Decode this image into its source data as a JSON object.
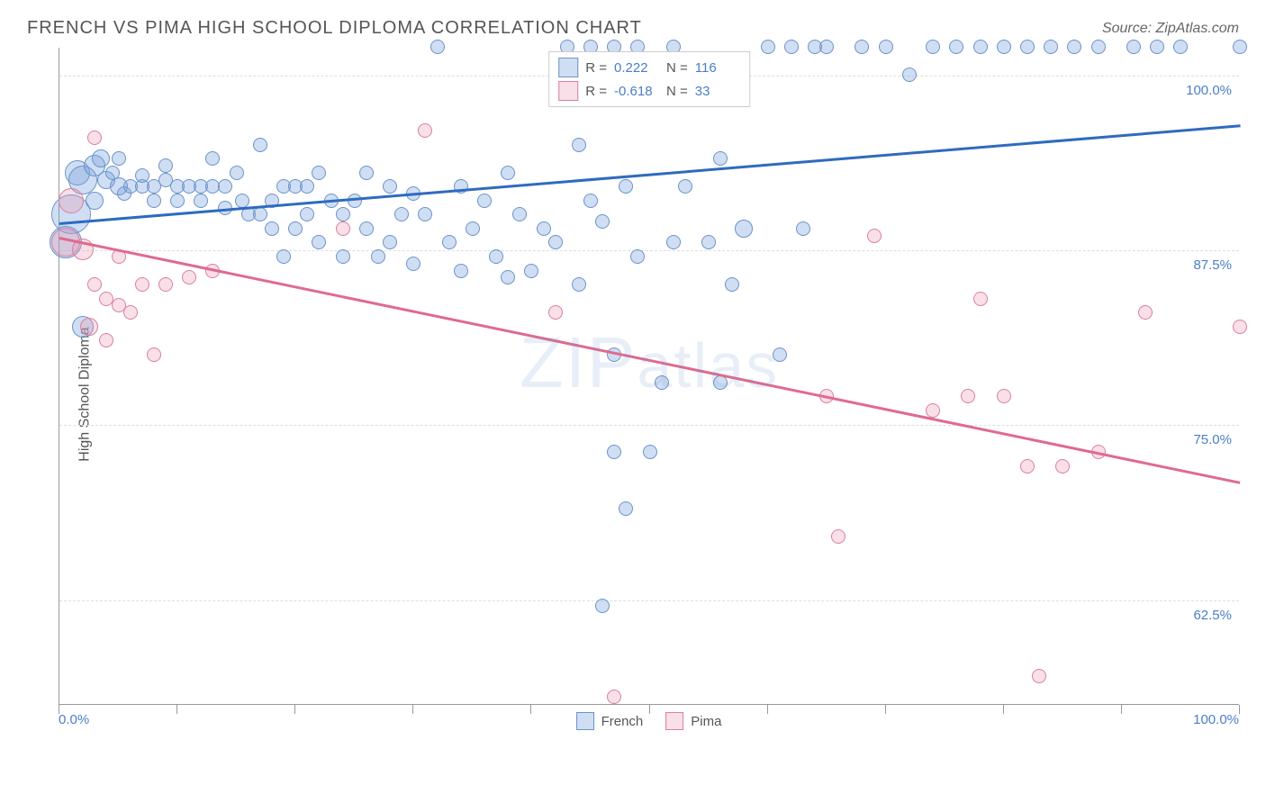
{
  "title": "FRENCH VS PIMA HIGH SCHOOL DIPLOMA CORRELATION CHART",
  "source_label": "Source: ZipAtlas.com",
  "ylabel": "High School Diploma",
  "watermark": {
    "bold": "ZIP",
    "rest": "atlas"
  },
  "chart": {
    "type": "scatter",
    "xlim": [
      0,
      100
    ],
    "ylim": [
      55,
      102
    ],
    "background_color": "#ffffff",
    "grid_color": "#dddddd",
    "axis_color": "#999999",
    "tick_label_color": "#4a7ec9",
    "tick_fontsize": 15,
    "yticks": [
      62.5,
      75.0,
      87.5,
      100.0
    ],
    "ytick_labels": [
      "62.5%",
      "75.0%",
      "87.5%",
      "100.0%"
    ],
    "xtick_positions": [
      0,
      10,
      20,
      30,
      40,
      50,
      60,
      70,
      80,
      90,
      100
    ],
    "xtick_labels_shown": {
      "0": "0.0%",
      "100": "100.0%"
    }
  },
  "series": [
    {
      "name": "French",
      "color_fill": "rgba(120,160,220,0.35)",
      "color_stroke": "#6a93c9",
      "trend_color": "#2e6bc0",
      "R": "0.222",
      "N": "116",
      "trend": {
        "x1": 0,
        "y1": 89.5,
        "x2": 100,
        "y2": 96.5
      },
      "points": [
        {
          "x": 0.5,
          "y": 88,
          "r": 18
        },
        {
          "x": 1,
          "y": 90,
          "r": 22
        },
        {
          "x": 1.5,
          "y": 93,
          "r": 14
        },
        {
          "x": 2,
          "y": 82,
          "r": 12
        },
        {
          "x": 2,
          "y": 92.5,
          "r": 16
        },
        {
          "x": 3,
          "y": 93.5,
          "r": 12
        },
        {
          "x": 3,
          "y": 91,
          "r": 10
        },
        {
          "x": 3.5,
          "y": 94,
          "r": 10
        },
        {
          "x": 4,
          "y": 92.5,
          "r": 10
        },
        {
          "x": 4.5,
          "y": 93,
          "r": 8
        },
        {
          "x": 5,
          "y": 92,
          "r": 10
        },
        {
          "x": 5,
          "y": 94,
          "r": 8
        },
        {
          "x": 5.5,
          "y": 91.5,
          "r": 8
        },
        {
          "x": 6,
          "y": 92,
          "r": 8
        },
        {
          "x": 7,
          "y": 92,
          "r": 8
        },
        {
          "x": 7,
          "y": 92.8,
          "r": 8
        },
        {
          "x": 8,
          "y": 92,
          "r": 8
        },
        {
          "x": 8,
          "y": 91,
          "r": 8
        },
        {
          "x": 9,
          "y": 92.5,
          "r": 8
        },
        {
          "x": 9,
          "y": 93.5,
          "r": 8
        },
        {
          "x": 10,
          "y": 92,
          "r": 8
        },
        {
          "x": 10,
          "y": 91,
          "r": 8
        },
        {
          "x": 11,
          "y": 92,
          "r": 8
        },
        {
          "x": 12,
          "y": 92,
          "r": 8
        },
        {
          "x": 12,
          "y": 91,
          "r": 8
        },
        {
          "x": 13,
          "y": 92,
          "r": 8
        },
        {
          "x": 13,
          "y": 94,
          "r": 8
        },
        {
          "x": 14,
          "y": 92,
          "r": 8
        },
        {
          "x": 14,
          "y": 90.5,
          "r": 8
        },
        {
          "x": 15,
          "y": 93,
          "r": 8
        },
        {
          "x": 15.5,
          "y": 91,
          "r": 8
        },
        {
          "x": 16,
          "y": 90,
          "r": 8
        },
        {
          "x": 17,
          "y": 95,
          "r": 8
        },
        {
          "x": 17,
          "y": 90,
          "r": 8
        },
        {
          "x": 18,
          "y": 91,
          "r": 8
        },
        {
          "x": 18,
          "y": 89,
          "r": 8
        },
        {
          "x": 19,
          "y": 92,
          "r": 8
        },
        {
          "x": 19,
          "y": 87,
          "r": 8
        },
        {
          "x": 20,
          "y": 92,
          "r": 8
        },
        {
          "x": 20,
          "y": 89,
          "r": 8
        },
        {
          "x": 21,
          "y": 92,
          "r": 8
        },
        {
          "x": 21,
          "y": 90,
          "r": 8
        },
        {
          "x": 22,
          "y": 93,
          "r": 8
        },
        {
          "x": 22,
          "y": 88,
          "r": 8
        },
        {
          "x": 23,
          "y": 91,
          "r": 8
        },
        {
          "x": 24,
          "y": 90,
          "r": 8
        },
        {
          "x": 24,
          "y": 87,
          "r": 8
        },
        {
          "x": 25,
          "y": 91,
          "r": 8
        },
        {
          "x": 26,
          "y": 89,
          "r": 8
        },
        {
          "x": 26,
          "y": 93,
          "r": 8
        },
        {
          "x": 27,
          "y": 87,
          "r": 8
        },
        {
          "x": 28,
          "y": 92,
          "r": 8
        },
        {
          "x": 28,
          "y": 88,
          "r": 8
        },
        {
          "x": 29,
          "y": 90,
          "r": 8
        },
        {
          "x": 30,
          "y": 91.5,
          "r": 8
        },
        {
          "x": 30,
          "y": 86.5,
          "r": 8
        },
        {
          "x": 31,
          "y": 90,
          "r": 8
        },
        {
          "x": 32,
          "y": 102,
          "r": 8
        },
        {
          "x": 33,
          "y": 88,
          "r": 8
        },
        {
          "x": 34,
          "y": 86,
          "r": 8
        },
        {
          "x": 34,
          "y": 92,
          "r": 8
        },
        {
          "x": 35,
          "y": 89,
          "r": 8
        },
        {
          "x": 36,
          "y": 91,
          "r": 8
        },
        {
          "x": 37,
          "y": 87,
          "r": 8
        },
        {
          "x": 38,
          "y": 85.5,
          "r": 8
        },
        {
          "x": 38,
          "y": 93,
          "r": 8
        },
        {
          "x": 39,
          "y": 90,
          "r": 8
        },
        {
          "x": 40,
          "y": 86,
          "r": 8
        },
        {
          "x": 41,
          "y": 89,
          "r": 8
        },
        {
          "x": 42,
          "y": 88,
          "r": 8
        },
        {
          "x": 43,
          "y": 102,
          "r": 8
        },
        {
          "x": 44,
          "y": 95,
          "r": 8
        },
        {
          "x": 44,
          "y": 85,
          "r": 8
        },
        {
          "x": 45,
          "y": 91,
          "r": 8
        },
        {
          "x": 45,
          "y": 102,
          "r": 8
        },
        {
          "x": 46,
          "y": 89.5,
          "r": 8
        },
        {
          "x": 46,
          "y": 62,
          "r": 8
        },
        {
          "x": 47,
          "y": 80,
          "r": 8
        },
        {
          "x": 47,
          "y": 73,
          "r": 8
        },
        {
          "x": 47,
          "y": 102,
          "r": 8
        },
        {
          "x": 48,
          "y": 69,
          "r": 8
        },
        {
          "x": 48,
          "y": 92,
          "r": 8
        },
        {
          "x": 49,
          "y": 87,
          "r": 8
        },
        {
          "x": 49,
          "y": 102,
          "r": 8
        },
        {
          "x": 50,
          "y": 73,
          "r": 8
        },
        {
          "x": 51,
          "y": 78,
          "r": 8
        },
        {
          "x": 52,
          "y": 88,
          "r": 8
        },
        {
          "x": 52,
          "y": 102,
          "r": 8
        },
        {
          "x": 53,
          "y": 92,
          "r": 8
        },
        {
          "x": 55,
          "y": 88,
          "r": 8
        },
        {
          "x": 56,
          "y": 94,
          "r": 8
        },
        {
          "x": 56,
          "y": 78,
          "r": 8
        },
        {
          "x": 57,
          "y": 85,
          "r": 8
        },
        {
          "x": 58,
          "y": 89,
          "r": 10
        },
        {
          "x": 60,
          "y": 102,
          "r": 8
        },
        {
          "x": 61,
          "y": 80,
          "r": 8
        },
        {
          "x": 62,
          "y": 102,
          "r": 8
        },
        {
          "x": 63,
          "y": 89,
          "r": 8
        },
        {
          "x": 64,
          "y": 102,
          "r": 8
        },
        {
          "x": 65,
          "y": 102,
          "r": 8
        },
        {
          "x": 68,
          "y": 102,
          "r": 8
        },
        {
          "x": 70,
          "y": 102,
          "r": 8
        },
        {
          "x": 72,
          "y": 100,
          "r": 8
        },
        {
          "x": 74,
          "y": 102,
          "r": 8
        },
        {
          "x": 76,
          "y": 102,
          "r": 8
        },
        {
          "x": 78,
          "y": 102,
          "r": 8
        },
        {
          "x": 80,
          "y": 102,
          "r": 8
        },
        {
          "x": 82,
          "y": 102,
          "r": 8
        },
        {
          "x": 84,
          "y": 102,
          "r": 8
        },
        {
          "x": 86,
          "y": 102,
          "r": 8
        },
        {
          "x": 88,
          "y": 102,
          "r": 8
        },
        {
          "x": 91,
          "y": 102,
          "r": 8
        },
        {
          "x": 93,
          "y": 102,
          "r": 8
        },
        {
          "x": 95,
          "y": 102,
          "r": 8
        },
        {
          "x": 100,
          "y": 102,
          "r": 8
        }
      ]
    },
    {
      "name": "Pima",
      "color_fill": "rgba(235,150,175,0.3)",
      "color_stroke": "#d9809f",
      "trend_color": "#e06a8e",
      "R": "-0.618",
      "N": "33",
      "trend": {
        "x1": 0,
        "y1": 88.5,
        "x2": 100,
        "y2": 71
      },
      "points": [
        {
          "x": 0.5,
          "y": 88,
          "r": 16
        },
        {
          "x": 1,
          "y": 91,
          "r": 14
        },
        {
          "x": 2,
          "y": 87.5,
          "r": 12
        },
        {
          "x": 2.5,
          "y": 82,
          "r": 10
        },
        {
          "x": 3,
          "y": 95.5,
          "r": 8
        },
        {
          "x": 3,
          "y": 85,
          "r": 8
        },
        {
          "x": 4,
          "y": 81,
          "r": 8
        },
        {
          "x": 4,
          "y": 84,
          "r": 8
        },
        {
          "x": 5,
          "y": 83.5,
          "r": 8
        },
        {
          "x": 5,
          "y": 87,
          "r": 8
        },
        {
          "x": 6,
          "y": 83,
          "r": 8
        },
        {
          "x": 7,
          "y": 85,
          "r": 8
        },
        {
          "x": 8,
          "y": 80,
          "r": 8
        },
        {
          "x": 9,
          "y": 85,
          "r": 8
        },
        {
          "x": 11,
          "y": 85.5,
          "r": 8
        },
        {
          "x": 13,
          "y": 86,
          "r": 8
        },
        {
          "x": 24,
          "y": 89,
          "r": 8
        },
        {
          "x": 31,
          "y": 96,
          "r": 8
        },
        {
          "x": 42,
          "y": 83,
          "r": 8
        },
        {
          "x": 47,
          "y": 55.5,
          "r": 8
        },
        {
          "x": 65,
          "y": 77,
          "r": 8
        },
        {
          "x": 66,
          "y": 67,
          "r": 8
        },
        {
          "x": 69,
          "y": 88.5,
          "r": 8
        },
        {
          "x": 74,
          "y": 76,
          "r": 8
        },
        {
          "x": 77,
          "y": 77,
          "r": 8
        },
        {
          "x": 78,
          "y": 84,
          "r": 8
        },
        {
          "x": 80,
          "y": 77,
          "r": 8
        },
        {
          "x": 82,
          "y": 72,
          "r": 8
        },
        {
          "x": 83,
          "y": 57,
          "r": 8
        },
        {
          "x": 85,
          "y": 72,
          "r": 8
        },
        {
          "x": 88,
          "y": 73,
          "r": 8
        },
        {
          "x": 92,
          "y": 83,
          "r": 8
        },
        {
          "x": 100,
          "y": 82,
          "r": 8
        }
      ]
    }
  ],
  "legend_bottom": [
    {
      "label": "French",
      "fill": "rgba(120,160,220,0.35)",
      "stroke": "#6a93c9"
    },
    {
      "label": "Pima",
      "fill": "rgba(235,150,175,0.3)",
      "stroke": "#d9809f"
    }
  ]
}
